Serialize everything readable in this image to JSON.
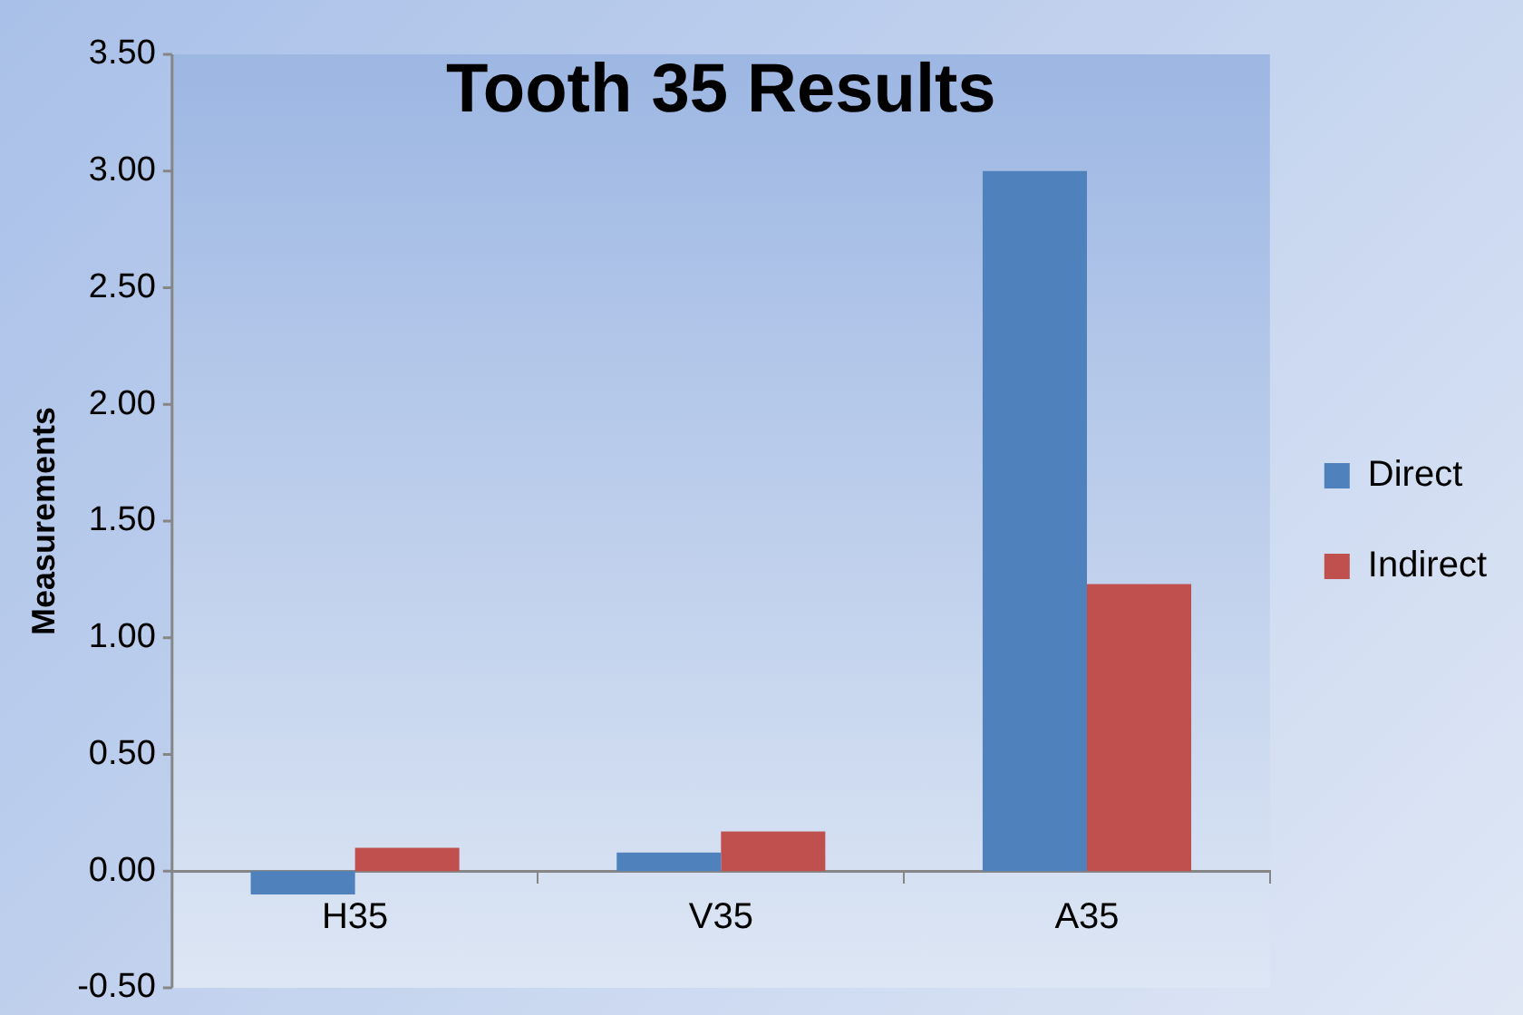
{
  "chart_data": {
    "type": "bar",
    "title": "Tooth 35 Results",
    "ylabel": "Measurements",
    "categories": [
      "H35",
      "V35",
      "A35"
    ],
    "series": [
      {
        "name": "Direct",
        "color": "#4f81bd",
        "values": [
          -0.1,
          0.08,
          3.0
        ]
      },
      {
        "name": "Indirect",
        "color": "#c0504d",
        "values": [
          0.1,
          0.17,
          1.23
        ]
      }
    ],
    "ylim": [
      -0.5,
      3.5
    ],
    "yticks": [
      {
        "value": -0.5,
        "label": "-0.50"
      },
      {
        "value": 0,
        "label": "0.00"
      },
      {
        "value": 0.5,
        "label": "0.50"
      },
      {
        "value": 1,
        "label": "1.00"
      },
      {
        "value": 1.5,
        "label": "1.50"
      },
      {
        "value": 2,
        "label": "2.00"
      },
      {
        "value": 2.5,
        "label": "2.50"
      },
      {
        "value": 3,
        "label": "3.00"
      },
      {
        "value": 3.5,
        "label": "3.50"
      }
    ],
    "grid": false,
    "legend": "right"
  }
}
